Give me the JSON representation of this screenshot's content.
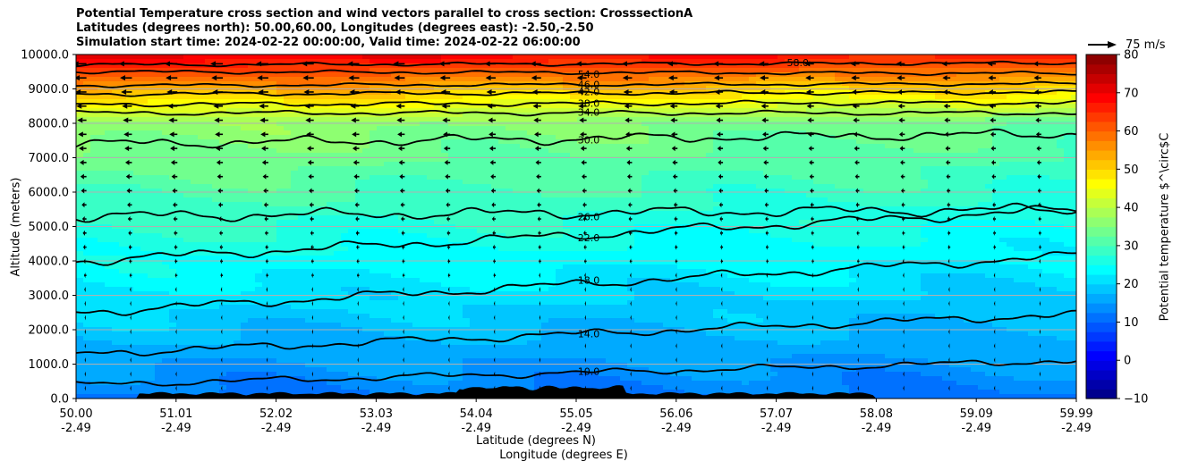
{
  "chart_data": {
    "type": "contourf",
    "title_lines": [
      "Potential Temperature cross section and wind vectors parallel to cross section: CrosssectionA",
      "Latitudes (degrees north): 50.00,60.00, Longitudes (degrees east): -2.50,-2.50",
      "Simulation start time: 2024-02-22 00:00:00, Valid time: 2024-02-22 06:00:00"
    ],
    "ylabel": "Altitude (meters)",
    "xlabel_lat": "Latitude (degrees N)",
    "xlabel_lon": "Longitude (degrees E)",
    "ylim": [
      0,
      10000
    ],
    "yticks": [
      "0.0",
      "1000.0",
      "2000.0",
      "3000.0",
      "4000.0",
      "5000.0",
      "6000.0",
      "7000.0",
      "8000.0",
      "9000.0",
      "10000.0"
    ],
    "xticks": [
      {
        "lat": "50.00",
        "lon": "-2.49"
      },
      {
        "lat": "51.01",
        "lon": "-2.49"
      },
      {
        "lat": "52.02",
        "lon": "-2.49"
      },
      {
        "lat": "53.03",
        "lon": "-2.49"
      },
      {
        "lat": "54.04",
        "lon": "-2.49"
      },
      {
        "lat": "55.05",
        "lon": "-2.49"
      },
      {
        "lat": "56.06",
        "lon": "-2.49"
      },
      {
        "lat": "57.07",
        "lon": "-2.49"
      },
      {
        "lat": "58.08",
        "lon": "-2.49"
      },
      {
        "lat": "59.09",
        "lon": "-2.49"
      },
      {
        "lat": "59.99",
        "lon": "-2.49"
      }
    ],
    "grid": "horizontal",
    "colormap": "jet",
    "colorbar": {
      "label": "Potential temperature $^\\circ$C",
      "range": [
        -10,
        80
      ],
      "ticks": [
        "−10",
        "0",
        "10",
        "20",
        "30",
        "40",
        "50",
        "60",
        "70",
        "80"
      ]
    },
    "contour_levels_labeled": [
      "10.0",
      "14.0",
      "18.0",
      "22.0",
      "26.0",
      "30.0",
      "34.0",
      "38.0",
      "42.0",
      "46.0",
      "54.0",
      "58.0"
    ],
    "isotherms": [
      {
        "level": 10,
        "label": "10.0",
        "y_start": 400,
        "y_end": 1100,
        "rough": 120,
        "label_x": 0.5
      },
      {
        "level": 14,
        "label": "14.0",
        "y_start": 1300,
        "y_end": 2450,
        "rough": 150,
        "label_x": 0.5
      },
      {
        "level": 18,
        "label": "18.0",
        "y_start": 2500,
        "y_end": 4150,
        "rough": 170,
        "label_x": 0.5
      },
      {
        "level": 22,
        "label": "22.0",
        "y_start": 4000,
        "y_end": 5500,
        "rough": 180,
        "label_x": 0.5
      },
      {
        "level": 26,
        "label": "26.0",
        "y_start": 5300,
        "y_end": 5500,
        "rough": 200,
        "label_x": 0.5
      },
      {
        "level": 30,
        "label": "30.0",
        "y_start": 7400,
        "y_end": 7700,
        "rough": 180,
        "label_x": 0.5
      },
      {
        "level": 34,
        "label": "34.0",
        "y_start": 8300,
        "y_end": 8300,
        "rough": 80,
        "label_x": 0.5
      },
      {
        "level": 38,
        "label": "38.0",
        "y_start": 8550,
        "y_end": 8600,
        "rough": 80,
        "label_x": 0.5
      },
      {
        "level": 42,
        "label": "42.0",
        "y_start": 8850,
        "y_end": 8900,
        "rough": 70,
        "label_x": 0.5
      },
      {
        "level": 46,
        "label": "46.0",
        "y_start": 9100,
        "y_end": 9150,
        "rough": 60,
        "label_x": 0.5
      },
      {
        "level": 54,
        "label": "54.0",
        "y_start": 9500,
        "y_end": 9450,
        "rough": 60,
        "label_x": 0.5
      },
      {
        "level": 58,
        "label": "58.0",
        "y_start": 9700,
        "y_end": 9750,
        "rough": 60,
        "label_x": 0.71
      }
    ],
    "temperature_field": {
      "surface_x_at_y0": 12,
      "lapse_per_1000m": 3.2,
      "x_trend_top_deg": -6,
      "upper_gradient_start_m": 8000,
      "upper_gradient_per_1000m": 14
    },
    "wind_vectors": {
      "reference_speed": "75 m/s",
      "direction": "westward (toward lower latitude)",
      "speed_max_at_top_ms": 37,
      "speed_min_near_surface_ms": 3
    },
    "terrain_label": "Ground (black)"
  }
}
